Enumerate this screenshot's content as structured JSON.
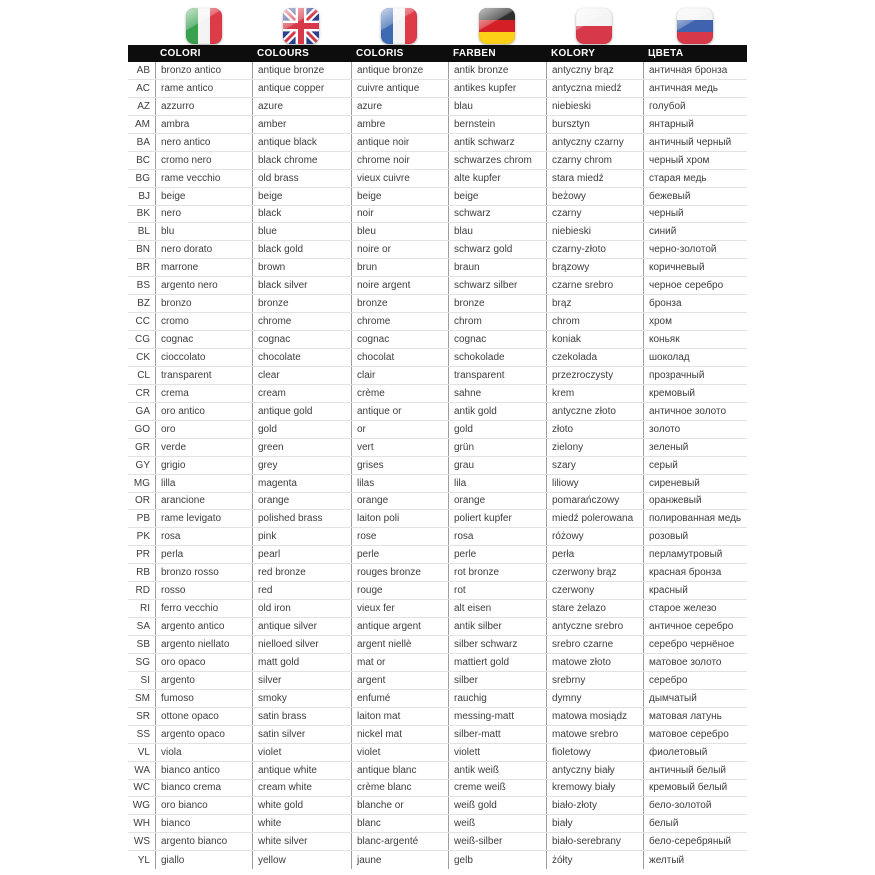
{
  "colors": {
    "header_bg": "#0d0d0d",
    "header_text": "#ffffff",
    "body_text": "#3d3d3d",
    "row_line": "#e2e2e2",
    "column_line": "#9d9d9d"
  },
  "flags": [
    "italy-flag-icon",
    "uk-flag-icon",
    "france-flag-icon",
    "germany-flag-icon",
    "poland-flag-icon",
    "russia-flag-icon"
  ],
  "table": {
    "headers": [
      "COLORI",
      "COLOURS",
      "COLORIS",
      "FARBEN",
      "KOLORY",
      "ЦВЕТА"
    ],
    "rows": [
      {
        "code": "AB",
        "it": "bronzo antico",
        "en": "antique bronze",
        "fr": "antique bronze",
        "de": "antik bronze",
        "pl": "antyczny brąz",
        "ru": "античная бронза"
      },
      {
        "code": "AC",
        "it": "rame antico",
        "en": "antique copper",
        "fr": "cuivre antique",
        "de": "antikes kupfer",
        "pl": "antyczna miedź",
        "ru": "античная медь"
      },
      {
        "code": "AZ",
        "it": "azzurro",
        "en": "azure",
        "fr": "azure",
        "de": "blau",
        "pl": "niebieski",
        "ru": "голубой"
      },
      {
        "code": "AM",
        "it": "ambra",
        "en": "amber",
        "fr": "ambre",
        "de": "bernstein",
        "pl": "bursztyn",
        "ru": "янтарный"
      },
      {
        "code": "BA",
        "it": "nero antico",
        "en": "antique black",
        "fr": "antique noir",
        "de": "antik schwarz",
        "pl": "antyczny czarny",
        "ru": "античный черный"
      },
      {
        "code": "BC",
        "it": "cromo nero",
        "en": "black chrome",
        "fr": "chrome noir",
        "de": "schwarzes chrom",
        "pl": "czarny chrom",
        "ru": "черный хром"
      },
      {
        "code": "BG",
        "it": "rame vecchio",
        "en": "old brass",
        "fr": "vieux cuivre",
        "de": "alte kupfer",
        "pl": "stara miedź",
        "ru": "старая медь"
      },
      {
        "code": "BJ",
        "it": "beige",
        "en": "beige",
        "fr": "beige",
        "de": "beige",
        "pl": "beżowy",
        "ru": "бежевый"
      },
      {
        "code": "BK",
        "it": "nero",
        "en": "black",
        "fr": "noir",
        "de": "schwarz",
        "pl": "czarny",
        "ru": "черный"
      },
      {
        "code": "BL",
        "it": "blu",
        "en": "blue",
        "fr": "bleu",
        "de": "blau",
        "pl": "niebieski",
        "ru": "синий"
      },
      {
        "code": "BN",
        "it": "nero dorato",
        "en": "black gold",
        "fr": "noire or",
        "de": "schwarz gold",
        "pl": "czarny-złoto",
        "ru": "черно-золотой"
      },
      {
        "code": "BR",
        "it": "marrone",
        "en": "brown",
        "fr": "brun",
        "de": "braun",
        "pl": "brązowy",
        "ru": "коричневый"
      },
      {
        "code": "BS",
        "it": "argento nero",
        "en": "black silver",
        "fr": "noire argent",
        "de": "schwarz silber",
        "pl": "czarne srebro",
        "ru": "черное серебро"
      },
      {
        "code": "BZ",
        "it": "bronzo",
        "en": "bronze",
        "fr": "bronze",
        "de": "bronze",
        "pl": "brąz",
        "ru": "бронза"
      },
      {
        "code": "CC",
        "it": "cromo",
        "en": "chrome",
        "fr": "chrome",
        "de": "chrom",
        "pl": "chrom",
        "ru": "хром"
      },
      {
        "code": "CG",
        "it": "cognac",
        "en": "cognac",
        "fr": "cognac",
        "de": "cognac",
        "pl": "koniak",
        "ru": "коньяк"
      },
      {
        "code": "CK",
        "it": "cioccolato",
        "en": "chocolate",
        "fr": "chocolat",
        "de": "schokolade",
        "pl": "czekolada",
        "ru": "шоколад"
      },
      {
        "code": "CL",
        "it": "transparent",
        "en": "clear",
        "fr": "clair",
        "de": "transparent",
        "pl": "przezroczysty",
        "ru": "прозрачный"
      },
      {
        "code": "CR",
        "it": "crema",
        "en": "cream",
        "fr": "crème",
        "de": "sahne",
        "pl": "krem",
        "ru": "кремовый"
      },
      {
        "code": "GA",
        "it": "oro antico",
        "en": "antique gold",
        "fr": "antique or",
        "de": "antik gold",
        "pl": "antyczne złoto",
        "ru": "античное золото"
      },
      {
        "code": "GO",
        "it": "oro",
        "en": "gold",
        "fr": "or",
        "de": "gold",
        "pl": "złoto",
        "ru": "золото"
      },
      {
        "code": "GR",
        "it": "verde",
        "en": "green",
        "fr": "vert",
        "de": "grün",
        "pl": "zielony",
        "ru": "зеленый"
      },
      {
        "code": "GY",
        "it": "grigio",
        "en": "grey",
        "fr": "grises",
        "de": "grau",
        "pl": "szary",
        "ru": "серый"
      },
      {
        "code": "MG",
        "it": "lilla",
        "en": "magenta",
        "fr": "lilas",
        "de": "lila",
        "pl": "liliowy",
        "ru": "сиреневый"
      },
      {
        "code": "OR",
        "it": "arancione",
        "en": "orange",
        "fr": "orange",
        "de": "orange",
        "pl": "pomarańczowy",
        "ru": "оранжевый"
      },
      {
        "code": "PB",
        "it": "rame levigato",
        "en": "polished brass",
        "fr": "laiton poli",
        "de": "poliert kupfer",
        "pl": "miedź polerowana",
        "ru": "полированная медь"
      },
      {
        "code": "PK",
        "it": "rosa",
        "en": "pink",
        "fr": "rose",
        "de": "rosa",
        "pl": "różowy",
        "ru": "розовый"
      },
      {
        "code": "PR",
        "it": "perla",
        "en": "pearl",
        "fr": "perle",
        "de": "perle",
        "pl": "perła",
        "ru": "перламутровый"
      },
      {
        "code": "RB",
        "it": "bronzo rosso",
        "en": "red bronze",
        "fr": "rouges bronze",
        "de": "rot bronze",
        "pl": "czerwony brąz",
        "ru": "красная бронза"
      },
      {
        "code": "RD",
        "it": "rosso",
        "en": "red",
        "fr": "rouge",
        "de": "rot",
        "pl": "czerwony",
        "ru": "красный"
      },
      {
        "code": "RI",
        "it": "ferro vecchio",
        "en": "old iron",
        "fr": "vieux fer",
        "de": "alt eisen",
        "pl": "stare żelazo",
        "ru": "старое железо"
      },
      {
        "code": "SA",
        "it": "argento antico",
        "en": "antique silver",
        "fr": "antique argent",
        "de": "antik silber",
        "pl": "antyczne srebro",
        "ru": "античное серебро"
      },
      {
        "code": "SB",
        "it": "argento niellato",
        "en": "nielloed silver",
        "fr": "argent niellè",
        "de": "silber schwarz",
        "pl": "srebro czarne",
        "ru": "серебро чернёное"
      },
      {
        "code": "SG",
        "it": "oro opaco",
        "en": "matt gold",
        "fr": "mat or",
        "de": "mattiert gold",
        "pl": "matowe złoto",
        "ru": "матовое золото"
      },
      {
        "code": "SI",
        "it": "argento",
        "en": "silver",
        "fr": "argent",
        "de": "silber",
        "pl": "srebrny",
        "ru": "серебро"
      },
      {
        "code": "SM",
        "it": "fumoso",
        "en": "smoky",
        "fr": "enfumé",
        "de": "rauchig",
        "pl": "dymny",
        "ru": "дымчатый"
      },
      {
        "code": "SR",
        "it": "ottone opaco",
        "en": "satin brass",
        "fr": "laiton mat",
        "de": "messing-matt",
        "pl": "matowa mosiądz",
        "ru": "матовая латунь"
      },
      {
        "code": "SS",
        "it": "argento opaco",
        "en": "satin silver",
        "fr": "nickel mat",
        "de": "silber-matt",
        "pl": "matowe srebro",
        "ru": "матовое серебро"
      },
      {
        "code": "VL",
        "it": "viola",
        "en": "violet",
        "fr": "violet",
        "de": "violett",
        "pl": "fioletowy",
        "ru": "фиолетовый"
      },
      {
        "code": "WA",
        "it": "bianco antico",
        "en": "antique white",
        "fr": "antique blanc",
        "de": "antik weiß",
        "pl": "antyczny biały",
        "ru": "античный белый"
      },
      {
        "code": "WC",
        "it": "bianco crema",
        "en": "cream white",
        "fr": "crème blanc",
        "de": "creme weiß",
        "pl": "kremowy biały",
        "ru": "кремовый белый"
      },
      {
        "code": "WG",
        "it": "oro bianco",
        "en": "white gold",
        "fr": "blanche or",
        "de": "weiß gold",
        "pl": "biało-złoty",
        "ru": "бело-золотой"
      },
      {
        "code": "WH",
        "it": "bianco",
        "en": "white",
        "fr": "blanc",
        "de": "weiß",
        "pl": "biały",
        "ru": "белый"
      },
      {
        "code": "WS",
        "it": "argento bianco",
        "en": "white silver",
        "fr": "blanc-argenté",
        "de": "weiß-silber",
        "pl": "biało-serebrany",
        "ru": "бело-серебряный"
      },
      {
        "code": "YL",
        "it": "giallo",
        "en": "yellow",
        "fr": "jaune",
        "de": "gelb",
        "pl": "żółty",
        "ru": "желтый"
      }
    ]
  }
}
